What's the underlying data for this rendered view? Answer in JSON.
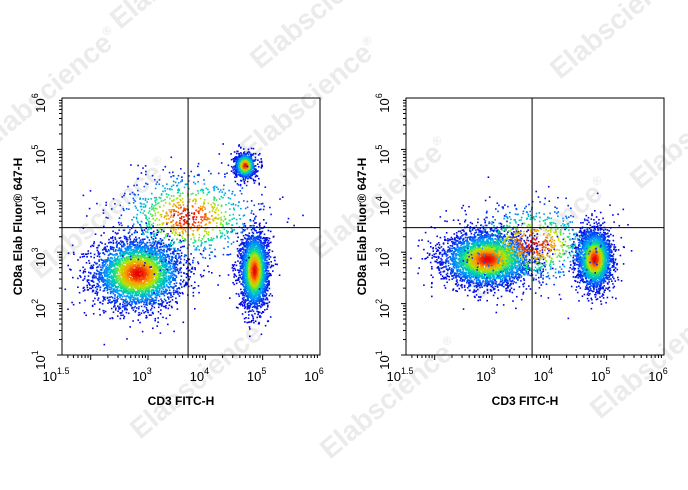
{
  "watermark": {
    "text": "Elabscience",
    "mark": "®"
  },
  "chart_data": [
    {
      "type": "scatter",
      "title": "",
      "xlabel": "CD3 FITC-H",
      "ylabel": "CD8a Elab Fluor® 647-H",
      "x_scale": "log",
      "y_scale": "log",
      "xlim": [
        31.6,
        1000000
      ],
      "ylim": [
        10,
        1000000
      ],
      "x_ticks": [
        {
          "base": "10",
          "exp": "1.5",
          "value": 31.6
        },
        {
          "base": "10",
          "exp": "3",
          "value": 1000
        },
        {
          "base": "10",
          "exp": "4",
          "value": 10000
        },
        {
          "base": "10",
          "exp": "5",
          "value": 100000
        },
        {
          "base": "10",
          "exp": "6",
          "value": 1000000
        }
      ],
      "y_ticks": [
        {
          "base": "10",
          "exp": "1",
          "value": 10
        },
        {
          "base": "10",
          "exp": "2",
          "value": 100
        },
        {
          "base": "10",
          "exp": "3",
          "value": 1000
        },
        {
          "base": "10",
          "exp": "4",
          "value": 10000
        },
        {
          "base": "10",
          "exp": "5",
          "value": 100000
        },
        {
          "base": "10",
          "exp": "6",
          "value": 1000000
        }
      ],
      "quadrant_gate": {
        "x": 5000,
        "y": 3000
      },
      "populations": [
        {
          "center": [
            650,
            400
          ],
          "spread_decades": [
            0.38,
            0.33
          ],
          "events": 3600
        },
        {
          "center": [
            70000,
            450
          ],
          "spread_decades": [
            0.12,
            0.36
          ],
          "events": 2600
        },
        {
          "center": [
            48000,
            50000
          ],
          "spread_decades": [
            0.09,
            0.12
          ],
          "events": 800
        },
        {
          "center": [
            5000,
            5000
          ],
          "spread_decades": [
            0.65,
            0.45
          ],
          "events": 900
        }
      ]
    },
    {
      "type": "scatter",
      "title": "",
      "xlabel": "CD3 FITC-H",
      "ylabel": "CD8a Elab Fluor® 647-H",
      "x_scale": "log",
      "y_scale": "log",
      "xlim": [
        31.6,
        1000000
      ],
      "ylim": [
        10,
        1000000
      ],
      "x_ticks": [
        {
          "base": "10",
          "exp": "1.5",
          "value": 31.6
        },
        {
          "base": "10",
          "exp": "3",
          "value": 1000
        },
        {
          "base": "10",
          "exp": "4",
          "value": 10000
        },
        {
          "base": "10",
          "exp": "5",
          "value": 100000
        },
        {
          "base": "10",
          "exp": "6",
          "value": 1000000
        }
      ],
      "y_ticks": [
        {
          "base": "10",
          "exp": "1",
          "value": 10
        },
        {
          "base": "10",
          "exp": "2",
          "value": 100
        },
        {
          "base": "10",
          "exp": "3",
          "value": 1000
        },
        {
          "base": "10",
          "exp": "4",
          "value": 10000
        },
        {
          "base": "10",
          "exp": "5",
          "value": 100000
        },
        {
          "base": "10",
          "exp": "6",
          "value": 1000000
        }
      ],
      "quadrant_gate": {
        "x": 5000,
        "y": 3000
      },
      "populations": [
        {
          "center": [
            800,
            750
          ],
          "spread_decades": [
            0.38,
            0.26
          ],
          "events": 3600
        },
        {
          "center": [
            60000,
            750
          ],
          "spread_decades": [
            0.15,
            0.28
          ],
          "events": 2600
        },
        {
          "center": [
            5000,
            1500
          ],
          "spread_decades": [
            0.6,
            0.4
          ],
          "events": 800
        }
      ]
    }
  ]
}
